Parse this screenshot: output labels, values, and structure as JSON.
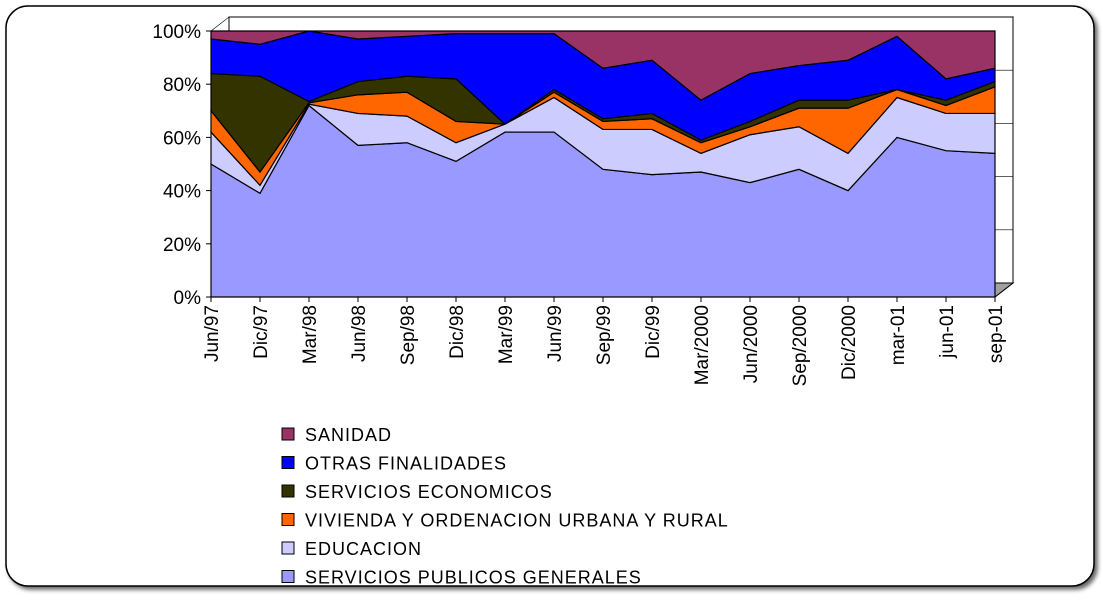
{
  "chart_data": {
    "type": "area",
    "stacked": true,
    "categories": [
      "Jun/97",
      "Dic/97",
      "Mar/98",
      "Jun/98",
      "Sep/98",
      "Dic/98",
      "Mar/99",
      "Jun/99",
      "Sep/99",
      "Dic/99",
      "Mar/2000",
      "Jun/2000",
      "Sep/2000",
      "Dic/2000",
      "mar-01",
      "jun-01",
      "sep-01"
    ],
    "series": [
      {
        "name": "SERVICIOS PUBLICOS GENERALES",
        "color": "#9999ff",
        "values": [
          50,
          39,
          72,
          57,
          58,
          51,
          62,
          62,
          48,
          46,
          47,
          43,
          48,
          40,
          60,
          55,
          54
        ]
      },
      {
        "name": "EDUCACION",
        "color": "#ccccff",
        "values": [
          12,
          3,
          0.5,
          12,
          10,
          7,
          3,
          13,
          15,
          17,
          7,
          18,
          16,
          14,
          15,
          14,
          15
        ]
      },
      {
        "name": "VIVIENDA Y ORDENACION URBANA Y RURAL",
        "color": "#ff6600",
        "values": [
          8,
          5,
          0.5,
          7,
          9,
          8,
          0,
          2,
          3,
          4,
          4,
          3,
          7,
          17,
          3,
          3,
          10
        ]
      },
      {
        "name": "SERVICIOS ECONOMICOS",
        "color": "#333300",
        "values": [
          14,
          36,
          0.5,
          5,
          6,
          16,
          0,
          1,
          1,
          2,
          1,
          2,
          3,
          3,
          0,
          2,
          2
        ]
      },
      {
        "name": "OTRAS FINALIDADES",
        "color": "#0000ff",
        "values": [
          13,
          12,
          26.5,
          16,
          15,
          17,
          34,
          21,
          19,
          20,
          15,
          18,
          13,
          15,
          20,
          8,
          5
        ]
      },
      {
        "name": "SANIDAD",
        "color": "#993366",
        "values": [
          3,
          5,
          0,
          3,
          2,
          1,
          1,
          1,
          14,
          11,
          26,
          16,
          13,
          11,
          2,
          18,
          14
        ]
      }
    ],
    "ylim": [
      0,
      100
    ],
    "yticks": [
      {
        "value": 0,
        "label": "0%"
      },
      {
        "value": 20,
        "label": "20%"
      },
      {
        "value": 40,
        "label": "40%"
      },
      {
        "value": 60,
        "label": "60%"
      },
      {
        "value": 80,
        "label": "80%"
      },
      {
        "value": 100,
        "label": "100%"
      }
    ],
    "grid": true
  }
}
